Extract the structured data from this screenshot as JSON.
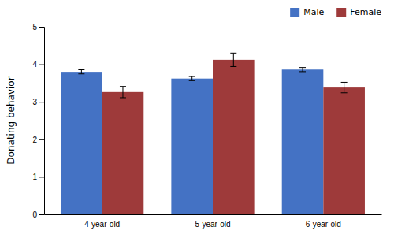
{
  "chart_data": {
    "type": "bar",
    "categories": [
      "4-year-old",
      "5-year-old",
      "6-year-old"
    ],
    "series": [
      {
        "name": "Male",
        "color": "#4472C4",
        "values": [
          3.8,
          3.62,
          3.86
        ],
        "errors": [
          0.055,
          0.055,
          0.055
        ]
      },
      {
        "name": "Female",
        "color": "#9E3A3A",
        "values": [
          3.26,
          4.12,
          3.38
        ],
        "errors": [
          0.15,
          0.18,
          0.14
        ]
      }
    ],
    "ylabel": "Donating behavior",
    "ylim": [
      0,
      5
    ],
    "yticks": [
      0,
      1,
      2,
      3,
      4,
      5
    ],
    "grid": false,
    "legend": "upper right"
  }
}
